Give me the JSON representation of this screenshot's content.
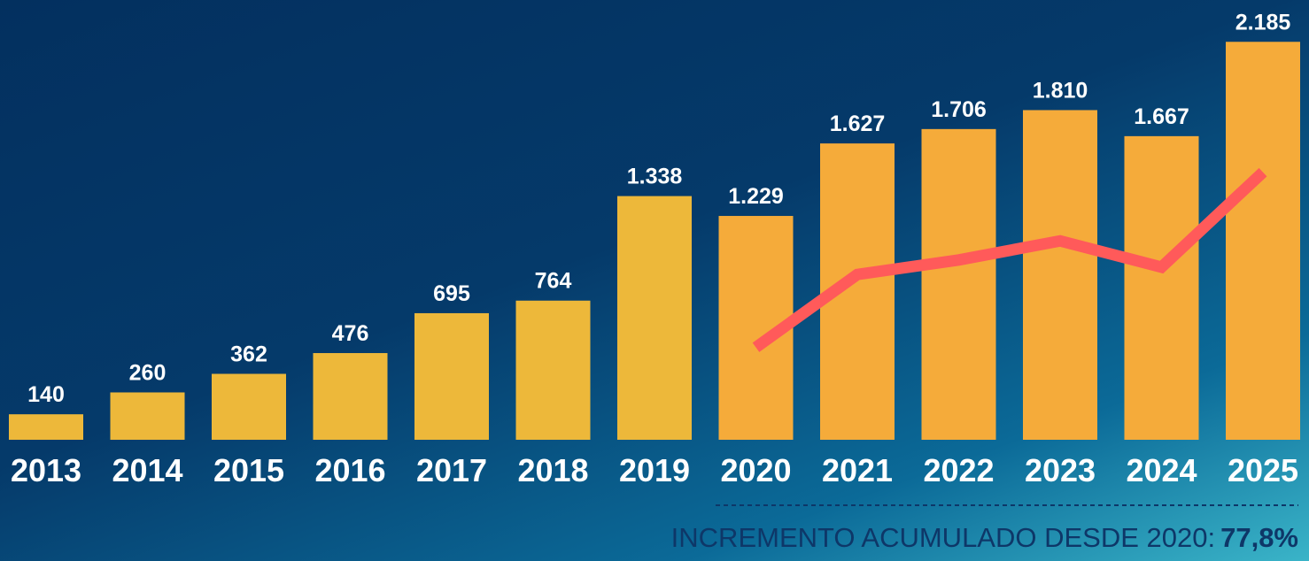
{
  "chart_data": {
    "type": "bar",
    "categories": [
      "2013",
      "2014",
      "2015",
      "2016",
      "2017",
      "2018",
      "2019",
      "2020",
      "2021",
      "2022",
      "2023",
      "2024",
      "2025"
    ],
    "values": [
      140,
      260,
      362,
      476,
      695,
      764,
      1338,
      1229,
      1627,
      1706,
      1810,
      1667,
      2185
    ],
    "value_labels": [
      "140",
      "260",
      "362",
      "476",
      "695",
      "764",
      "1.338",
      "1.229",
      "1.627",
      "1.706",
      "1.810",
      "1.667",
      "2.185"
    ],
    "colors": [
      "#edb83a",
      "#edb83a",
      "#edb83a",
      "#edb83a",
      "#edb83a",
      "#edb83a",
      "#edb83a",
      "#f5ab3a",
      "#f5ab3a",
      "#f5ab3a",
      "#f5ab3a",
      "#f5ab3a",
      "#f5ab3a"
    ],
    "ylim": [
      0,
      2400
    ],
    "line": {
      "axis": "y2",
      "color": "#ff5a5a",
      "start_index": 7,
      "values": [
        1229,
        1627,
        1706,
        1810,
        1667,
        2185
      ]
    },
    "y2lim": [
      725,
      3110
    ],
    "annotation": "INCREMENTO ACUMULADO DESDE 2020:",
    "annotation_value": "77,8%"
  }
}
